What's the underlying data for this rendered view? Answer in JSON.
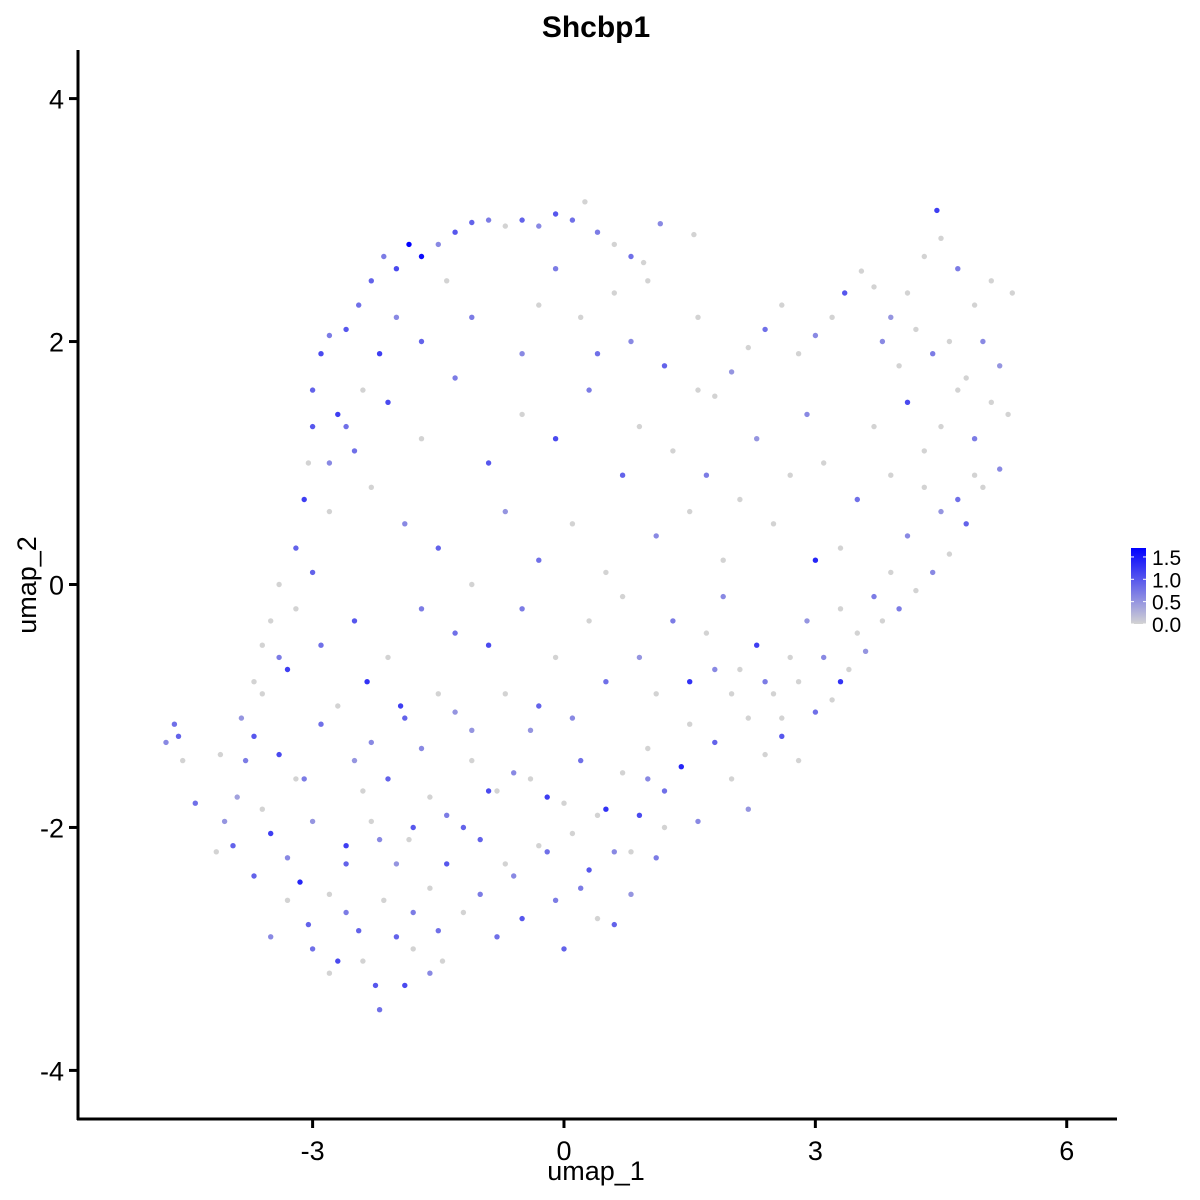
{
  "chart_data": {
    "type": "scatter",
    "title": "Shcbp1",
    "xlabel": "umap_1",
    "ylabel": "umap_2",
    "xlim": [
      -5.8,
      6.6
    ],
    "ylim": [
      -4.4,
      4.4
    ],
    "xticks": [
      -3,
      0,
      3,
      6
    ],
    "xtick_labels": [
      "-3",
      "0",
      "3",
      "6"
    ],
    "yticks": [
      -4,
      -2,
      0,
      2,
      4
    ],
    "ytick_labels": [
      "-4",
      "-2",
      "0",
      "2",
      "4"
    ],
    "grid": false,
    "legend": {
      "placement": "right",
      "type": "colorbar",
      "labels": [
        "1.5",
        "1.0",
        "0.5",
        "0.0"
      ],
      "values": [
        1.5,
        1.0,
        0.5,
        0.0
      ],
      "min": 0.0,
      "max": 1.7
    },
    "colors": {
      "low": "#d3d3d3",
      "high": "#0000ff"
    },
    "points": [
      [
        -4.75,
        -1.3,
        0.6
      ],
      [
        -4.65,
        -1.15,
        0.8
      ],
      [
        -4.6,
        -1.25,
        0.9
      ],
      [
        -4.55,
        -1.45,
        0.0
      ],
      [
        -4.4,
        -1.8,
        0.8
      ],
      [
        -4.15,
        -2.2,
        0.0
      ],
      [
        -4.1,
        -1.4,
        0.0
      ],
      [
        -4.05,
        -1.95,
        0.5
      ],
      [
        -3.95,
        -2.15,
        0.9
      ],
      [
        -3.9,
        -1.75,
        0.4
      ],
      [
        -3.8,
        -1.45,
        0.7
      ],
      [
        -3.7,
        -1.25,
        1.0
      ],
      [
        -3.6,
        -1.85,
        0.0
      ],
      [
        -3.5,
        -2.05,
        1.2
      ],
      [
        -3.4,
        -1.4,
        1.1
      ],
      [
        -3.3,
        -2.25,
        0.6
      ],
      [
        -3.2,
        -1.6,
        0.0
      ],
      [
        -3.15,
        -2.45,
        1.4
      ],
      [
        -3.05,
        -2.8,
        0.9
      ],
      [
        -3.0,
        -1.95,
        0.5
      ],
      [
        -2.9,
        -1.15,
        0.8
      ],
      [
        -2.8,
        -2.55,
        0.0
      ],
      [
        -2.7,
        -3.1,
        1.1
      ],
      [
        -2.6,
        -2.15,
        1.2
      ],
      [
        -2.5,
        -1.45,
        0.5
      ],
      [
        -2.45,
        -2.85,
        0.9
      ],
      [
        -2.35,
        -0.8,
        1.3
      ],
      [
        -2.3,
        -1.95,
        0.0
      ],
      [
        -2.25,
        -3.3,
        1.0
      ],
      [
        -2.2,
        -3.5,
        0.8
      ],
      [
        -2.15,
        -2.6,
        0.0
      ],
      [
        -2.1,
        -1.6,
        0.9
      ],
      [
        -2.0,
        -2.3,
        0.5
      ],
      [
        -1.95,
        -1.0,
        1.2
      ],
      [
        -1.9,
        -3.3,
        1.1
      ],
      [
        -1.85,
        -2.1,
        0.0
      ],
      [
        -1.8,
        -2.7,
        0.7
      ],
      [
        -1.7,
        -1.35,
        0.6
      ],
      [
        -1.6,
        -1.75,
        0.0
      ],
      [
        -1.5,
        -2.85,
        0.8
      ],
      [
        -1.45,
        -3.1,
        0.0
      ],
      [
        -1.4,
        -2.3,
        1.0
      ],
      [
        -1.3,
        -1.05,
        0.5
      ],
      [
        -1.2,
        -2.0,
        0.9
      ],
      [
        -1.1,
        -1.45,
        0.0
      ],
      [
        -1.0,
        -2.55,
        0.7
      ],
      [
        -0.9,
        -1.7,
        1.1
      ],
      [
        -0.8,
        -2.9,
        0.8
      ],
      [
        -0.7,
        -2.3,
        0.0
      ],
      [
        -0.6,
        -1.55,
        0.6
      ],
      [
        -0.5,
        -2.75,
        1.0
      ],
      [
        -0.4,
        -1.2,
        0.5
      ],
      [
        -0.3,
        -2.15,
        0.0
      ],
      [
        -0.2,
        -1.75,
        1.2
      ],
      [
        -0.1,
        -2.6,
        0.7
      ],
      [
        0.0,
        -3.0,
        0.9
      ],
      [
        0.1,
        -2.05,
        0.0
      ],
      [
        0.2,
        -1.45,
        0.8
      ],
      [
        0.3,
        -2.35,
        1.0
      ],
      [
        0.4,
        -2.75,
        0.0
      ],
      [
        0.5,
        -1.85,
        1.3
      ],
      [
        0.6,
        -2.2,
        0.6
      ],
      [
        0.7,
        -1.55,
        0.0
      ],
      [
        0.8,
        -2.55,
        0.5
      ],
      [
        0.9,
        -1.9,
        1.1
      ],
      [
        1.0,
        -1.35,
        0.0
      ],
      [
        1.1,
        -2.25,
        0.7
      ],
      [
        1.2,
        -1.7,
        0.8
      ],
      [
        1.4,
        -1.5,
        1.4
      ],
      [
        1.5,
        -1.15,
        0.0
      ],
      [
        1.6,
        -1.95,
        0.6
      ],
      [
        1.8,
        -1.3,
        0.9
      ],
      [
        2.0,
        -1.6,
        0.0
      ],
      [
        2.2,
        -1.85,
        0.5
      ],
      [
        2.4,
        -1.4,
        0.0
      ],
      [
        2.6,
        -1.25,
        1.0
      ],
      [
        2.8,
        -1.45,
        0.0
      ],
      [
        3.0,
        -1.05,
        0.8
      ],
      [
        3.2,
        -0.95,
        0.0
      ],
      [
        3.3,
        -0.8,
        1.3
      ],
      [
        3.4,
        -0.7,
        0.0
      ],
      [
        3.6,
        -0.55,
        0.5
      ],
      [
        3.8,
        -0.3,
        0.0
      ],
      [
        4.0,
        -0.2,
        0.7
      ],
      [
        4.2,
        -0.05,
        0.0
      ],
      [
        4.4,
        0.1,
        0.6
      ],
      [
        4.6,
        0.25,
        0.0
      ],
      [
        4.8,
        0.5,
        0.9
      ],
      [
        5.0,
        0.8,
        0.0
      ],
      [
        5.2,
        0.95,
        0.6
      ],
      [
        5.3,
        1.4,
        0.0
      ],
      [
        5.2,
        1.8,
        0.5
      ],
      [
        5.35,
        2.4,
        0.0
      ],
      [
        5.1,
        2.5,
        0.0
      ],
      [
        4.9,
        2.3,
        0.0
      ],
      [
        4.7,
        2.6,
        0.7
      ],
      [
        4.5,
        2.85,
        0.0
      ],
      [
        4.45,
        3.08,
        1.2
      ],
      [
        4.3,
        2.7,
        0.0
      ],
      [
        4.1,
        2.4,
        0.0
      ],
      [
        3.9,
        2.2,
        0.5
      ],
      [
        3.7,
        2.45,
        0.0
      ],
      [
        3.55,
        2.58,
        0.0
      ],
      [
        3.35,
        2.4,
        1.0
      ],
      [
        3.2,
        2.2,
        0.0
      ],
      [
        3.0,
        2.05,
        0.6
      ],
      [
        2.8,
        1.9,
        0.0
      ],
      [
        2.6,
        2.3,
        0.0
      ],
      [
        2.4,
        2.1,
        0.8
      ],
      [
        2.2,
        1.95,
        0.0
      ],
      [
        2.0,
        1.75,
        0.5
      ],
      [
        1.8,
        1.55,
        0.0
      ],
      [
        1.6,
        1.6,
        0.0
      ],
      [
        1.6,
        2.2,
        0.0
      ],
      [
        1.55,
        2.88,
        0.0
      ],
      [
        1.15,
        2.97,
        0.6
      ],
      [
        0.95,
        2.65,
        0.0
      ],
      [
        0.8,
        2.7,
        0.8
      ],
      [
        0.6,
        2.8,
        0.0
      ],
      [
        0.4,
        2.9,
        0.7
      ],
      [
        0.25,
        3.15,
        0.0
      ],
      [
        0.1,
        3.0,
        0.8
      ],
      [
        -0.1,
        3.05,
        1.0
      ],
      [
        -0.3,
        2.95,
        0.6
      ],
      [
        -0.5,
        3.0,
        0.9
      ],
      [
        -0.7,
        2.95,
        0.0
      ],
      [
        -0.9,
        3.0,
        0.7
      ],
      [
        -1.1,
        2.98,
        0.9
      ],
      [
        -1.3,
        2.9,
        1.0
      ],
      [
        -1.5,
        2.8,
        0.6
      ],
      [
        -1.7,
        2.7,
        1.6
      ],
      [
        -1.85,
        2.8,
        1.7
      ],
      [
        -2.0,
        2.6,
        1.1
      ],
      [
        -2.15,
        2.7,
        0.7
      ],
      [
        -2.3,
        2.5,
        0.9
      ],
      [
        -2.45,
        2.3,
        0.8
      ],
      [
        -2.6,
        2.1,
        1.0
      ],
      [
        -2.8,
        2.05,
        0.7
      ],
      [
        -2.9,
        1.9,
        1.1
      ],
      [
        -3.0,
        1.6,
        0.9
      ],
      [
        -3.0,
        1.3,
        1.0
      ],
      [
        -3.05,
        1.0,
        0.0
      ],
      [
        -3.1,
        0.7,
        1.2
      ],
      [
        -3.2,
        0.3,
        0.9
      ],
      [
        -3.4,
        0.0,
        0.0
      ],
      [
        -3.5,
        -0.3,
        0.0
      ],
      [
        -3.6,
        -0.5,
        0.0
      ],
      [
        -3.7,
        -0.8,
        0.0
      ],
      [
        -3.85,
        -1.1,
        0.5
      ],
      [
        -2.7,
        1.4,
        1.2
      ],
      [
        -2.5,
        1.1,
        0.8
      ],
      [
        -2.3,
        0.8,
        0.0
      ],
      [
        -2.1,
        1.5,
        1.1
      ],
      [
        -1.9,
        0.5,
        0.6
      ],
      [
        -1.7,
        1.2,
        0.0
      ],
      [
        -1.5,
        0.3,
        0.9
      ],
      [
        -1.3,
        1.7,
        0.7
      ],
      [
        -1.1,
        0.0,
        0.0
      ],
      [
        -0.9,
        1.0,
        1.0
      ],
      [
        -0.7,
        0.6,
        0.5
      ],
      [
        -0.5,
        1.4,
        0.0
      ],
      [
        -0.3,
        0.2,
        0.8
      ],
      [
        -0.1,
        1.2,
        1.1
      ],
      [
        0.1,
        0.5,
        0.0
      ],
      [
        0.3,
        1.6,
        0.7
      ],
      [
        0.5,
        0.1,
        0.0
      ],
      [
        0.7,
        0.9,
        0.9
      ],
      [
        0.9,
        1.3,
        0.0
      ],
      [
        1.1,
        0.4,
        0.6
      ],
      [
        1.3,
        1.1,
        0.0
      ],
      [
        1.5,
        0.6,
        0.0
      ],
      [
        1.7,
        0.9,
        0.7
      ],
      [
        1.9,
        0.2,
        0.0
      ],
      [
        2.1,
        0.7,
        0.0
      ],
      [
        2.3,
        1.2,
        0.5
      ],
      [
        2.5,
        0.5,
        0.0
      ],
      [
        2.7,
        0.9,
        0.0
      ],
      [
        2.9,
        1.4,
        0.6
      ],
      [
        3.1,
        1.0,
        0.0
      ],
      [
        3.3,
        0.3,
        0.0
      ],
      [
        3.5,
        0.7,
        0.8
      ],
      [
        3.7,
        1.3,
        0.0
      ],
      [
        3.9,
        0.9,
        0.0
      ],
      [
        4.1,
        1.5,
        1.1
      ],
      [
        4.3,
        1.1,
        0.0
      ],
      [
        4.5,
        0.6,
        0.5
      ],
      [
        4.7,
        1.6,
        0.0
      ],
      [
        4.9,
        1.2,
        0.7
      ],
      [
        3.0,
        0.2,
        1.4
      ],
      [
        -2.9,
        -0.5,
        0.8
      ],
      [
        -2.7,
        -1.0,
        0.0
      ],
      [
        -2.5,
        -0.3,
        1.0
      ],
      [
        -2.3,
        -1.3,
        0.6
      ],
      [
        -2.1,
        -0.6,
        0.0
      ],
      [
        -1.9,
        -1.1,
        0.9
      ],
      [
        -1.7,
        -0.2,
        0.7
      ],
      [
        -1.5,
        -0.9,
        0.0
      ],
      [
        -1.3,
        -0.4,
        0.8
      ],
      [
        -1.1,
        -1.2,
        0.5
      ],
      [
        -0.9,
        -0.5,
        1.1
      ],
      [
        -0.7,
        -0.9,
        0.0
      ],
      [
        -0.5,
        -0.2,
        0.7
      ],
      [
        -0.3,
        -1.0,
        0.9
      ],
      [
        -0.1,
        -0.6,
        0.0
      ],
      [
        0.1,
        -1.1,
        0.6
      ],
      [
        0.3,
        -0.3,
        0.0
      ],
      [
        0.5,
        -0.8,
        0.8
      ],
      [
        0.7,
        -0.1,
        0.0
      ],
      [
        0.9,
        -0.6,
        0.5
      ],
      [
        1.1,
        -0.9,
        0.0
      ],
      [
        1.3,
        -0.3,
        0.7
      ],
      [
        1.5,
        -0.8,
        1.3
      ],
      [
        1.7,
        -0.4,
        0.0
      ],
      [
        1.9,
        -0.1,
        0.6
      ],
      [
        2.1,
        -0.7,
        0.0
      ],
      [
        2.3,
        -0.5,
        1.2
      ],
      [
        2.5,
        -0.9,
        0.0
      ],
      [
        2.7,
        -0.6,
        0.0
      ],
      [
        2.9,
        -0.3,
        0.5
      ],
      [
        -3.3,
        -0.7,
        1.2
      ],
      [
        -3.1,
        -1.6,
        0.7
      ],
      [
        -2.6,
        -2.3,
        0.9
      ],
      [
        -2.4,
        -1.7,
        0.0
      ],
      [
        -2.2,
        -2.1,
        0.6
      ],
      [
        -1.8,
        -2.0,
        1.0
      ],
      [
        -1.6,
        -2.5,
        0.0
      ],
      [
        -1.4,
        -1.9,
        0.7
      ],
      [
        -1.2,
        -2.7,
        0.0
      ],
      [
        -1.0,
        -2.1,
        0.9
      ],
      [
        -0.8,
        -1.7,
        0.0
      ],
      [
        -0.6,
        -2.4,
        0.6
      ],
      [
        -0.4,
        -1.6,
        0.0
      ],
      [
        -0.2,
        -2.2,
        0.8
      ],
      [
        0.0,
        -1.8,
        0.0
      ],
      [
        0.2,
        -2.5,
        0.7
      ],
      [
        0.4,
        -1.9,
        0.0
      ],
      [
        0.6,
        -2.8,
        0.9
      ],
      [
        0.8,
        -2.2,
        0.0
      ],
      [
        1.0,
        -1.6,
        0.6
      ],
      [
        1.2,
        -2.0,
        0.0
      ],
      [
        -3.7,
        -2.4,
        0.9
      ],
      [
        -3.5,
        -2.9,
        0.6
      ],
      [
        -3.3,
        -2.6,
        0.0
      ],
      [
        -3.0,
        -3.0,
        0.8
      ],
      [
        -2.8,
        -3.2,
        0.0
      ],
      [
        -2.6,
        -2.7,
        0.7
      ],
      [
        -2.4,
        -3.1,
        0.0
      ],
      [
        -2.0,
        -2.9,
        0.9
      ],
      [
        -1.8,
        -3.0,
        0.0
      ],
      [
        -1.6,
        -3.2,
        0.6
      ],
      [
        -0.5,
        1.9,
        0.6
      ],
      [
        -0.3,
        2.3,
        0.0
      ],
      [
        -0.1,
        2.6,
        0.7
      ],
      [
        0.2,
        2.2,
        0.0
      ],
      [
        0.4,
        1.9,
        0.8
      ],
      [
        0.6,
        2.4,
        0.0
      ],
      [
        0.8,
        2.0,
        0.6
      ],
      [
        1.0,
        2.5,
        0.0
      ],
      [
        1.2,
        1.8,
        0.9
      ],
      [
        -1.1,
        2.2,
        0.7
      ],
      [
        -1.4,
        2.5,
        0.0
      ],
      [
        -1.7,
        2.0,
        0.9
      ],
      [
        -2.0,
        2.2,
        0.6
      ],
      [
        -2.2,
        1.9,
        1.2
      ],
      [
        -2.4,
        1.6,
        0.0
      ],
      [
        -2.6,
        1.3,
        0.8
      ],
      [
        -2.8,
        1.0,
        0.6
      ],
      [
        -2.8,
        0.6,
        0.0
      ],
      [
        -3.0,
        0.1,
        0.9
      ],
      [
        -3.2,
        -0.2,
        0.0
      ],
      [
        -3.4,
        -0.6,
        0.7
      ],
      [
        -3.6,
        -0.9,
        0.0
      ],
      [
        3.8,
        2.0,
        0.6
      ],
      [
        4.0,
        1.8,
        0.0
      ],
      [
        4.2,
        2.1,
        0.0
      ],
      [
        4.4,
        1.9,
        0.7
      ],
      [
        4.6,
        2.0,
        0.0
      ],
      [
        4.8,
        1.7,
        0.0
      ],
      [
        5.0,
        2.0,
        0.6
      ],
      [
        5.1,
        1.5,
        0.0
      ],
      [
        4.9,
        0.9,
        0.0
      ],
      [
        4.7,
        0.7,
        0.8
      ],
      [
        4.5,
        1.3,
        0.0
      ],
      [
        4.3,
        0.8,
        0.0
      ],
      [
        4.1,
        0.4,
        0.6
      ],
      [
        3.9,
        0.1,
        0.0
      ],
      [
        3.7,
        -0.1,
        0.7
      ],
      [
        3.5,
        -0.4,
        0.0
      ],
      [
        3.3,
        -0.2,
        0.0
      ],
      [
        3.1,
        -0.6,
        0.6
      ],
      [
        2.8,
        -0.8,
        0.0
      ],
      [
        2.6,
        -1.1,
        0.0
      ],
      [
        2.4,
        -0.8,
        0.7
      ],
      [
        2.2,
        -1.1,
        0.0
      ],
      [
        2.0,
        -0.9,
        0.0
      ],
      [
        1.8,
        -0.7,
        0.6
      ]
    ]
  }
}
